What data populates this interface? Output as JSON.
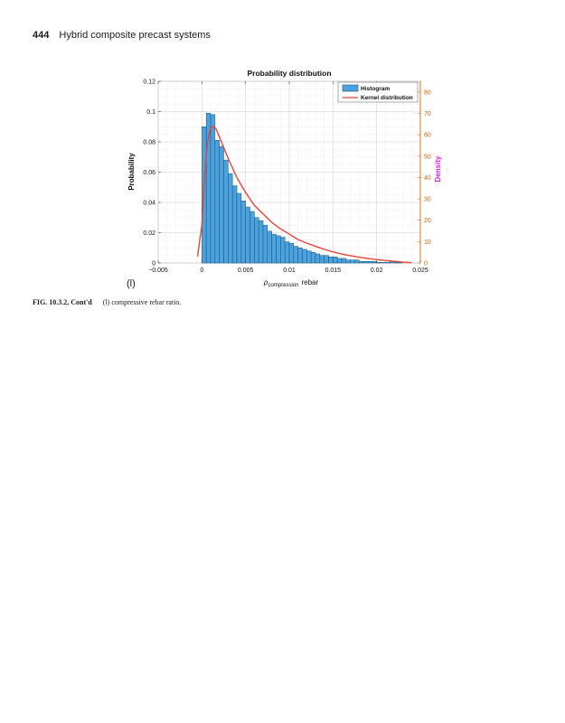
{
  "running_head": {
    "page_number": "444",
    "title": "Hybrid composite precast systems"
  },
  "figure": {
    "panel_label": "(l)",
    "caption_id": "FIG. 10.3.2, Cont'd",
    "caption_text": "(l) compressive rebar ratio."
  },
  "colors": {
    "bar_fill": "#4aa3df",
    "bar_stroke": "#1f4f70",
    "kde_line": "#e8443a",
    "right_axis": "#d95f02",
    "right_label": "#e020e0"
  },
  "chart_data": {
    "type": "bar",
    "title": "Probability distribution",
    "xlabel_sub": "compression",
    "xlabel_text": "rebar",
    "ylabel": "Probability",
    "y2label": "Density",
    "xlim": [
      -0.005,
      0.025
    ],
    "ylim": [
      0,
      0.12
    ],
    "y2lim": [
      0,
      85
    ],
    "xticks": [
      -0.005,
      0,
      0.005,
      0.01,
      0.015,
      0.02,
      0.025
    ],
    "xtick_labels": [
      "−0.005",
      "0",
      "0.005",
      "0.01",
      "0.015",
      "0.02",
      "0.025"
    ],
    "yticks": [
      0,
      0.02,
      0.04,
      0.06,
      0.08,
      0.1,
      0.12
    ],
    "ytick_labels": [
      "0",
      "0.02",
      "0.04",
      "0.06",
      "0.08",
      "0.1",
      "0.12"
    ],
    "y2ticks": [
      0,
      10,
      20,
      30,
      40,
      50,
      60,
      70,
      80
    ],
    "y2tick_labels": [
      "0",
      "10",
      "20",
      "30",
      "40",
      "50",
      "60",
      "70",
      "80"
    ],
    "grid": true,
    "legend_position": "top-right",
    "series": [
      {
        "name": "Histogram",
        "type": "bar",
        "bin_width": 0.0005,
        "bin_edges_start": 0,
        "values": [
          0.09,
          0.099,
          0.098,
          0.081,
          0.077,
          0.068,
          0.059,
          0.051,
          0.046,
          0.041,
          0.037,
          0.034,
          0.03,
          0.028,
          0.025,
          0.021,
          0.019,
          0.018,
          0.017,
          0.014,
          0.013,
          0.011,
          0.01,
          0.009,
          0.008,
          0.007,
          0.006,
          0.005,
          0.005,
          0.004,
          0.004,
          0.003,
          0.003,
          0.002,
          0.002,
          0.002,
          0.001,
          0.001,
          0.001,
          0.001,
          0.0005,
          0.0005,
          0.0005,
          0.001,
          0.0005,
          0.0005,
          0.0,
          0.0
        ]
      },
      {
        "name": "Kernel distribution",
        "type": "line",
        "axis": "right",
        "x": [
          -0.0005,
          0.0,
          0.0003,
          0.0006,
          0.0009,
          0.0012,
          0.0016,
          0.002,
          0.0025,
          0.003,
          0.004,
          0.005,
          0.006,
          0.007,
          0.008,
          0.009,
          0.01,
          0.011,
          0.012,
          0.013,
          0.014,
          0.015,
          0.016,
          0.017,
          0.018,
          0.019,
          0.02,
          0.021,
          0.022,
          0.023,
          0.024
        ],
        "y": [
          3,
          18,
          40,
          55,
          62,
          64,
          63,
          59,
          54,
          49,
          40,
          33,
          27,
          23,
          19,
          16,
          13.5,
          11,
          9.3,
          7.8,
          6.4,
          5.2,
          4.2,
          3.4,
          2.7,
          2.1,
          1.6,
          1.2,
          0.8,
          0.4,
          0.1
        ]
      }
    ]
  }
}
